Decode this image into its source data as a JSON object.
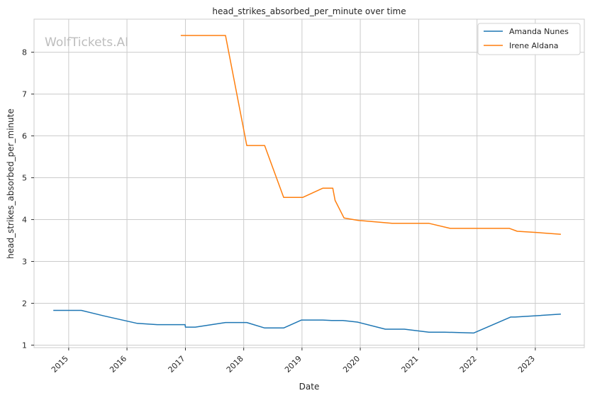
{
  "chart_data": {
    "type": "line",
    "title": "head_strikes_absorbed_per_minute over time",
    "xlabel": "Date",
    "ylabel": "head_strikes_absorbed_per_minute",
    "watermark": "WolfTickets.AI",
    "x_ticks": [
      "2015",
      "2016",
      "2017",
      "2018",
      "2019",
      "2020",
      "2021",
      "2022",
      "2023"
    ],
    "y_ticks": [
      "1",
      "2",
      "3",
      "4",
      "5",
      "6",
      "7",
      "8"
    ],
    "xlim": [
      "2014-05-29",
      "2023-11-04"
    ],
    "ylim": [
      0.94,
      8.79
    ],
    "grid": true,
    "legend_position": "top-right",
    "series": [
      {
        "name": "Amanda Nunes",
        "color": "#1f77b4",
        "points": [
          [
            "2014-09-27",
            1.83
          ],
          [
            "2015-03-21",
            1.83
          ],
          [
            "2015-08-08",
            1.7
          ],
          [
            "2016-03-05",
            1.52
          ],
          [
            "2016-07-09",
            1.49
          ],
          [
            "2016-12-30",
            1.49
          ],
          [
            "2017-01-01",
            1.43
          ],
          [
            "2017-03-04",
            1.43
          ],
          [
            "2017-09-09",
            1.54
          ],
          [
            "2018-01-20",
            1.54
          ],
          [
            "2018-05-12",
            1.41
          ],
          [
            "2018-09-08",
            1.41
          ],
          [
            "2018-12-29",
            1.6
          ],
          [
            "2019-05-11",
            1.6
          ],
          [
            "2019-07-06",
            1.59
          ],
          [
            "2019-09-14",
            1.59
          ],
          [
            "2019-12-14",
            1.55
          ],
          [
            "2020-06-06",
            1.38
          ],
          [
            "2020-10-03",
            1.38
          ],
          [
            "2021-03-06",
            1.31
          ],
          [
            "2021-06-12",
            1.31
          ],
          [
            "2021-12-11",
            1.29
          ],
          [
            "2022-07-30",
            1.67
          ],
          [
            "2022-08-27",
            1.67
          ],
          [
            "2023-06-10",
            1.74
          ]
        ]
      },
      {
        "name": "Irene Aldana",
        "color": "#ff7f0e",
        "points": [
          [
            "2016-12-03",
            8.4
          ],
          [
            "2017-09-09",
            8.4
          ],
          [
            "2018-01-20",
            5.77
          ],
          [
            "2018-05-12",
            5.77
          ],
          [
            "2018-09-08",
            4.53
          ],
          [
            "2019-01-05",
            4.53
          ],
          [
            "2019-05-11",
            4.75
          ],
          [
            "2019-07-13",
            4.75
          ],
          [
            "2019-07-27",
            4.46
          ],
          [
            "2019-09-21",
            4.04
          ],
          [
            "2019-12-21",
            3.98
          ],
          [
            "2020-07-18",
            3.91
          ],
          [
            "2021-03-06",
            3.91
          ],
          [
            "2021-07-17",
            3.79
          ],
          [
            "2022-07-23",
            3.79
          ],
          [
            "2022-09-10",
            3.72
          ],
          [
            "2023-01-14",
            3.69
          ],
          [
            "2023-06-10",
            3.65
          ]
        ]
      }
    ]
  }
}
